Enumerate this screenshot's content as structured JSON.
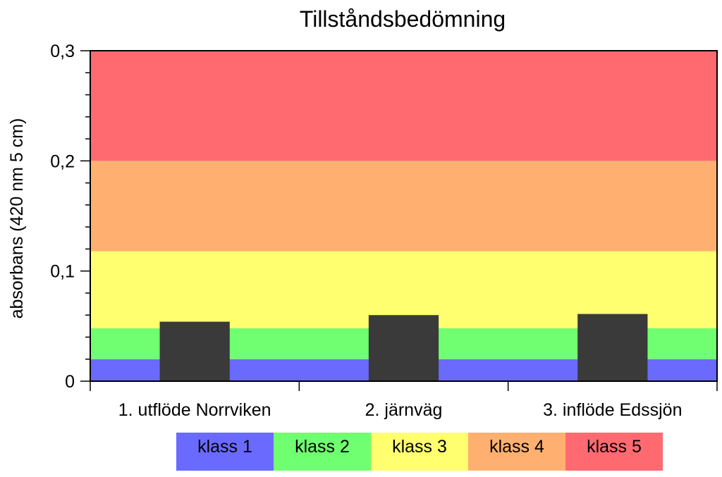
{
  "chart_data": {
    "type": "bar",
    "title": "Tillståndsbedömning",
    "xlabel": "",
    "ylabel": "absorbans (420 nm 5 cm)",
    "ylim": [
      0,
      0.3
    ],
    "yticks": [
      {
        "value": 0,
        "label": "0"
      },
      {
        "value": 0.1,
        "label": "0,1"
      },
      {
        "value": 0.2,
        "label": "0,2"
      },
      {
        "value": 0.3,
        "label": "0,3"
      }
    ],
    "categories": [
      "1. utflöde Norrviken",
      "2. järnväg",
      "3. inflöde Edssjön"
    ],
    "values": [
      0.054,
      0.06,
      0.061
    ],
    "bar_color": "#3a3a3a",
    "class_bands": [
      {
        "name": "klass 1",
        "from": 0,
        "to": 0.02,
        "color": "#6a6aff"
      },
      {
        "name": "klass 2",
        "from": 0.02,
        "to": 0.048,
        "color": "#70ff70"
      },
      {
        "name": "klass 3",
        "from": 0.048,
        "to": 0.118,
        "color": "#ffff70"
      },
      {
        "name": "klass 4",
        "from": 0.118,
        "to": 0.2,
        "color": "#ffb070"
      },
      {
        "name": "klass 5",
        "from": 0.2,
        "to": 0.3,
        "color": "#ff6a70"
      }
    ],
    "legend": {
      "placement": "bottom",
      "items": [
        {
          "label": "klass 1",
          "color": "#6a6aff"
        },
        {
          "label": "klass 2",
          "color": "#70ff70"
        },
        {
          "label": "klass 3",
          "color": "#ffff70"
        },
        {
          "label": "klass 4",
          "color": "#ffb070"
        },
        {
          "label": "klass 5",
          "color": "#ff6a70"
        }
      ]
    },
    "grid": false
  }
}
